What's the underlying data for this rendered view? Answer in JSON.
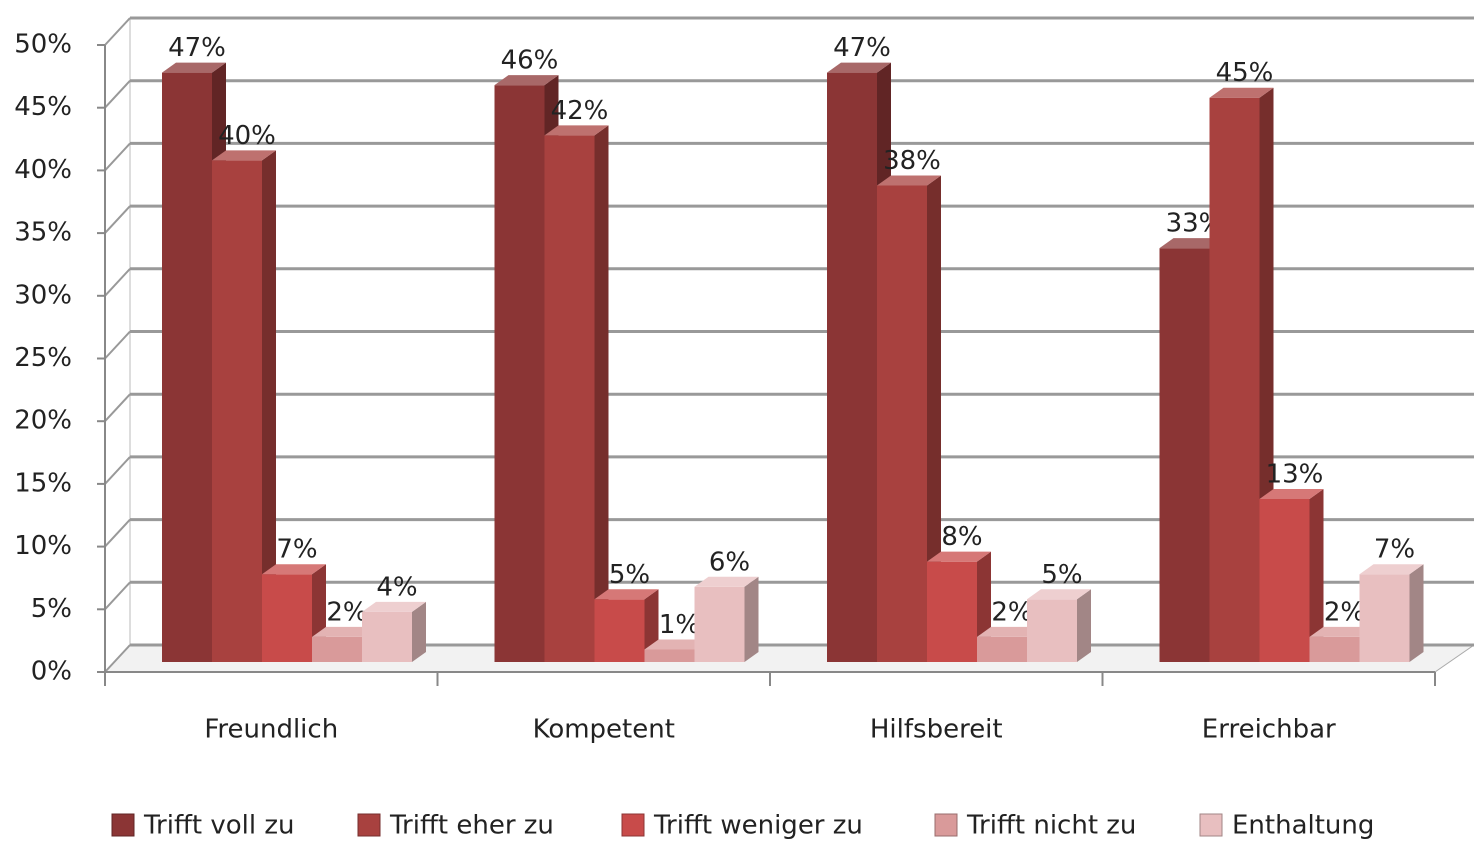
{
  "chart_data": {
    "type": "bar3d",
    "categories": [
      "Freundlich",
      "Kompetent",
      "Hilfsbereit",
      "Erreichbar"
    ],
    "series": [
      {
        "name": "Trifft voll zu",
        "color": "#8b3535",
        "values": [
          47,
          46,
          47,
          33
        ],
        "value_labels": [
          "47%",
          "46%",
          "47%",
          "33%"
        ]
      },
      {
        "name": "Trifft eher zu",
        "color": "#a8413f",
        "values": [
          40,
          42,
          38,
          45
        ],
        "value_labels": [
          "40%",
          "42%",
          "38%",
          "45%"
        ]
      },
      {
        "name": "Trifft weniger zu",
        "color": "#c84b4a",
        "values": [
          7,
          5,
          8,
          13
        ],
        "value_labels": [
          "7%",
          "5%",
          "8%",
          "13%"
        ]
      },
      {
        "name": "Trifft nicht zu",
        "color": "#d99a9a",
        "values": [
          2,
          1,
          2,
          2
        ],
        "value_labels": [
          "2%",
          "1%",
          "2%",
          "2%"
        ]
      },
      {
        "name": "Enthaltung",
        "color": "#e8bfc0",
        "values": [
          4,
          6,
          5,
          7
        ],
        "value_labels": [
          "4%",
          "6%",
          "5%",
          "7%"
        ]
      }
    ],
    "ylim": [
      0,
      50
    ],
    "yticks": [
      {
        "value": 0,
        "label": "0%"
      },
      {
        "value": 5,
        "label": "5%"
      },
      {
        "value": 10,
        "label": "10%"
      },
      {
        "value": 15,
        "label": "15%"
      },
      {
        "value": 20,
        "label": "20%"
      },
      {
        "value": 25,
        "label": "25%"
      },
      {
        "value": 30,
        "label": "30%"
      },
      {
        "value": 35,
        "label": "35%"
      },
      {
        "value": 40,
        "label": "40%"
      },
      {
        "value": 45,
        "label": "45%"
      },
      {
        "value": 50,
        "label": "50%"
      }
    ],
    "grid": true,
    "legend": "bottom"
  }
}
